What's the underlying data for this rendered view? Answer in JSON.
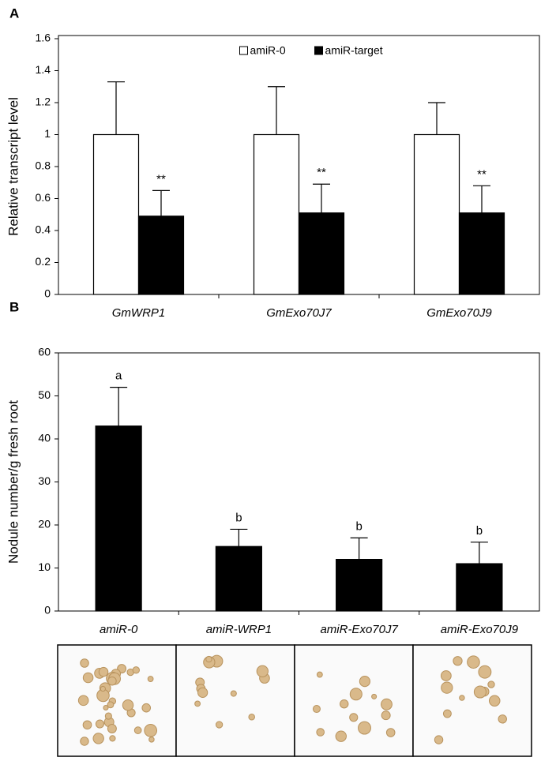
{
  "chart_data": [
    {
      "type": "bar",
      "panel": "A",
      "ylabel": "Relative transcript level",
      "categories": [
        "GmWRP1",
        "GmExo70J7",
        "GmExo70J9"
      ],
      "series": [
        {
          "name": "amiR-0",
          "color": "#ffffff",
          "values": [
            1,
            1,
            1
          ],
          "errors": [
            0.33,
            0.3,
            0.2
          ]
        },
        {
          "name": "amiR-target",
          "color": "#000000",
          "values": [
            0.49,
            0.51,
            0.51
          ],
          "errors": [
            0.16,
            0.18,
            0.17
          ],
          "annotations": [
            "**",
            "**",
            "**"
          ]
        }
      ],
      "ylim": [
        0,
        1.6
      ],
      "yticks": [
        0,
        0.2,
        0.4,
        0.6,
        0.8,
        1,
        1.2,
        1.4,
        1.6
      ],
      "legend": "upper center"
    },
    {
      "type": "bar",
      "panel": "B",
      "ylabel": "Nodule number/g fresh root",
      "categories": [
        "amiR-0",
        "amiR-WRP1",
        "amiR-Exo70J7",
        "amiR-Exo70J9"
      ],
      "series": [
        {
          "color": "#000000",
          "values": [
            43,
            15,
            12,
            11
          ],
          "errors": [
            9,
            4,
            5,
            5
          ],
          "annotations": [
            "a",
            "b",
            "b",
            "b"
          ]
        }
      ],
      "ylim": [
        0,
        60
      ],
      "yticks": [
        0,
        10,
        20,
        30,
        40,
        50,
        60
      ]
    }
  ]
}
